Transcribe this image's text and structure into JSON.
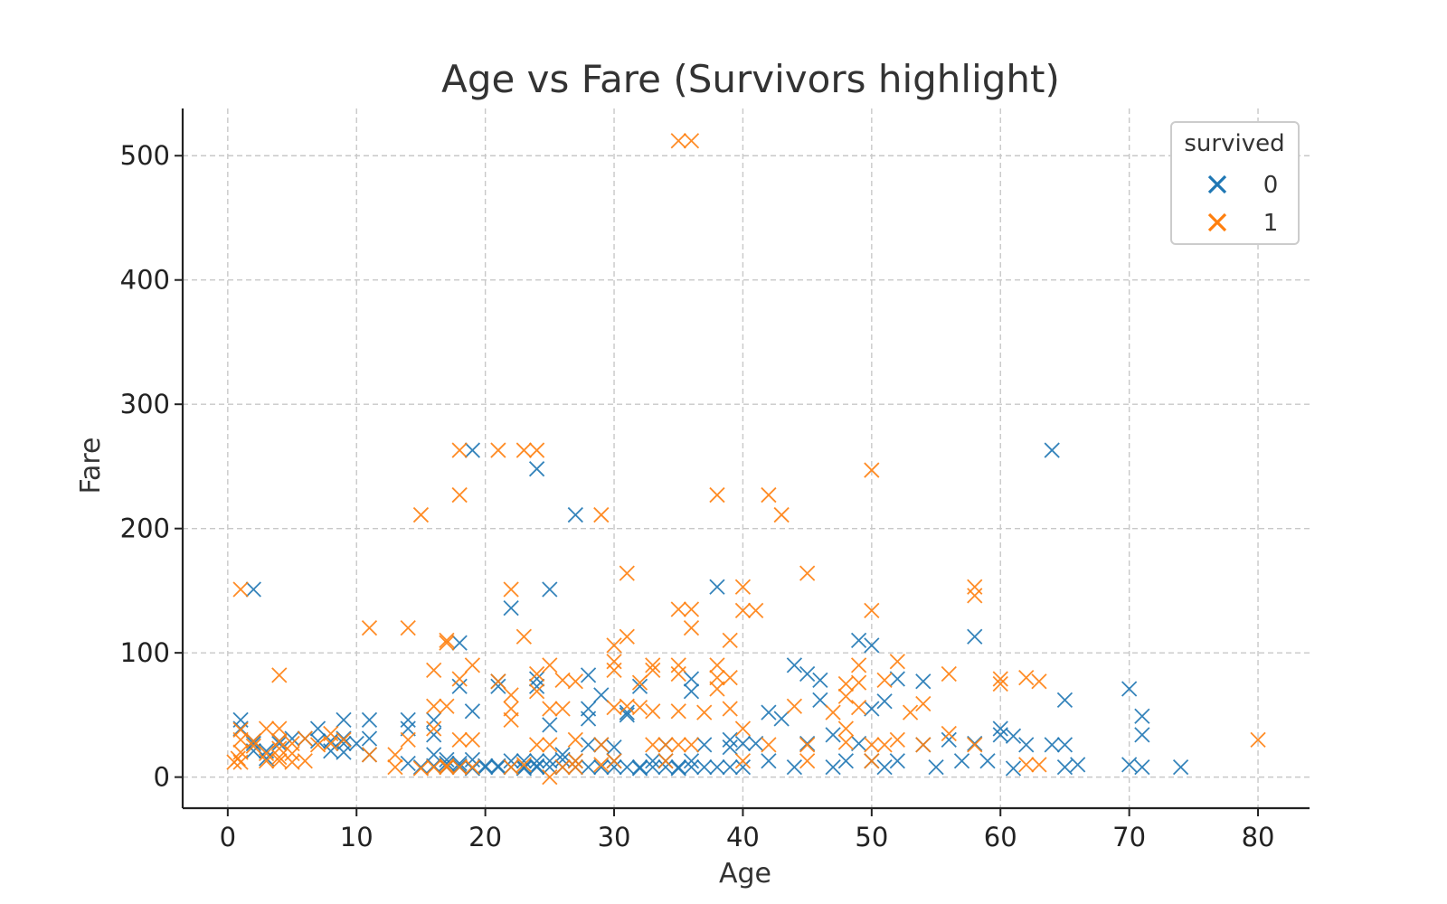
{
  "chart_data": {
    "type": "scatter",
    "title": "Age vs Fare (Survivors highlight)",
    "xlabel": "Age",
    "ylabel": "Fare",
    "xlim": [
      -3.5,
      84
    ],
    "ylim": [
      -25,
      538
    ],
    "xticks": [
      0,
      10,
      20,
      30,
      40,
      50,
      60,
      70,
      80
    ],
    "yticks": [
      0,
      100,
      200,
      300,
      400,
      500
    ],
    "grid": true,
    "marker": "x",
    "legend": {
      "title": "survived",
      "placement": "top-right"
    },
    "series": [
      {
        "name": "0",
        "color": "#1f77b4",
        "points": [
          [
            1,
            46
          ],
          [
            1,
            39
          ],
          [
            2,
            29
          ],
          [
            2,
            27
          ],
          [
            2,
            21
          ],
          [
            2,
            151
          ],
          [
            3,
            21
          ],
          [
            3,
            15
          ],
          [
            4,
            29
          ],
          [
            4,
            27
          ],
          [
            5,
            31
          ],
          [
            6,
            31
          ],
          [
            7,
            39
          ],
          [
            7,
            29
          ],
          [
            8,
            21
          ],
          [
            8,
            29
          ],
          [
            9,
            46
          ],
          [
            9,
            31
          ],
          [
            9,
            27
          ],
          [
            9,
            20
          ],
          [
            10,
            27
          ],
          [
            11,
            46
          ],
          [
            11,
            31
          ],
          [
            11,
            18
          ],
          [
            14,
            46
          ],
          [
            14,
            39
          ],
          [
            14,
            11
          ],
          [
            15,
            8
          ],
          [
            16,
            46
          ],
          [
            16,
            34
          ],
          [
            16,
            18
          ],
          [
            16,
            9
          ],
          [
            17,
            8
          ],
          [
            17,
            11
          ],
          [
            17,
            14
          ],
          [
            18,
            108
          ],
          [
            18,
            73
          ],
          [
            18,
            9
          ],
          [
            18,
            11
          ],
          [
            18,
            8
          ],
          [
            19,
            263
          ],
          [
            19,
            53
          ],
          [
            19,
            7
          ],
          [
            19,
            14
          ],
          [
            20,
            8
          ],
          [
            20,
            9
          ],
          [
            21,
            73
          ],
          [
            21,
            77
          ],
          [
            21,
            9
          ],
          [
            21,
            8
          ],
          [
            22,
            136
          ],
          [
            22,
            8
          ],
          [
            22,
            13
          ],
          [
            23,
            7
          ],
          [
            23,
            13
          ],
          [
            23,
            8
          ],
          [
            24,
            248
          ],
          [
            24,
            79
          ],
          [
            24,
            73
          ],
          [
            24,
            9
          ],
          [
            24,
            13
          ],
          [
            24,
            8
          ],
          [
            25,
            151
          ],
          [
            25,
            42
          ],
          [
            25,
            13
          ],
          [
            25,
            8
          ],
          [
            26,
            8
          ],
          [
            26,
            14
          ],
          [
            26,
            18
          ],
          [
            27,
            211
          ],
          [
            27,
            8
          ],
          [
            27,
            13
          ],
          [
            28,
            82
          ],
          [
            28,
            55
          ],
          [
            28,
            47
          ],
          [
            28,
            8
          ],
          [
            28,
            26
          ],
          [
            29,
            66
          ],
          [
            29,
            8
          ],
          [
            29,
            26
          ],
          [
            30,
            8
          ],
          [
            30,
            24
          ],
          [
            30,
            13
          ],
          [
            31,
            52
          ],
          [
            31,
            50
          ],
          [
            31,
            8
          ],
          [
            32,
            73
          ],
          [
            32,
            8
          ],
          [
            32,
            7
          ],
          [
            33,
            8
          ],
          [
            33,
            13
          ],
          [
            34,
            8
          ],
          [
            34,
            13
          ],
          [
            34,
            26
          ],
          [
            35,
            8
          ],
          [
            35,
            7
          ],
          [
            36,
            79
          ],
          [
            36,
            69
          ],
          [
            36,
            8
          ],
          [
            36,
            13
          ],
          [
            37,
            26
          ],
          [
            37,
            8
          ],
          [
            38,
            153
          ],
          [
            38,
            8
          ],
          [
            39,
            30
          ],
          [
            39,
            24
          ],
          [
            39,
            8
          ],
          [
            40,
            8
          ],
          [
            40,
            27
          ],
          [
            41,
            27
          ],
          [
            42,
            52
          ],
          [
            42,
            13
          ],
          [
            43,
            47
          ],
          [
            44,
            90
          ],
          [
            44,
            8
          ],
          [
            45,
            83
          ],
          [
            45,
            27
          ],
          [
            46,
            62
          ],
          [
            46,
            78
          ],
          [
            47,
            8
          ],
          [
            47,
            34
          ],
          [
            48,
            13
          ],
          [
            49,
            110
          ],
          [
            49,
            27
          ],
          [
            50,
            106
          ],
          [
            50,
            55
          ],
          [
            50,
            13
          ],
          [
            51,
            61
          ],
          [
            51,
            8
          ],
          [
            52,
            79
          ],
          [
            52,
            13
          ],
          [
            54,
            26
          ],
          [
            54,
            77
          ],
          [
            55,
            8
          ],
          [
            56,
            30
          ],
          [
            57,
            13
          ],
          [
            58,
            113
          ],
          [
            58,
            27
          ],
          [
            59,
            13
          ],
          [
            60,
            39
          ],
          [
            60,
            34
          ],
          [
            61,
            33
          ],
          [
            61,
            7
          ],
          [
            62,
            26
          ],
          [
            64,
            263
          ],
          [
            64,
            26
          ],
          [
            65,
            26
          ],
          [
            65,
            62
          ],
          [
            65,
            8
          ],
          [
            66,
            10
          ],
          [
            70,
            71
          ],
          [
            70,
            10
          ],
          [
            71,
            49
          ],
          [
            71,
            34
          ],
          [
            71,
            8
          ],
          [
            74,
            8
          ]
        ]
      },
      {
        "name": "1",
        "color": "#ff7f0e",
        "points": [
          [
            0.5,
            12
          ],
          [
            0.8,
            15
          ],
          [
            1,
            151
          ],
          [
            1,
            38
          ],
          [
            1,
            30
          ],
          [
            1,
            20
          ],
          [
            1,
            12
          ],
          [
            2,
            29
          ],
          [
            2,
            25
          ],
          [
            3,
            39
          ],
          [
            3,
            19
          ],
          [
            3,
            13
          ],
          [
            4,
            82
          ],
          [
            4,
            39
          ],
          [
            4,
            29
          ],
          [
            4,
            23
          ],
          [
            4,
            16
          ],
          [
            4,
            13
          ],
          [
            5,
            27
          ],
          [
            5,
            19
          ],
          [
            5,
            12
          ],
          [
            6,
            31
          ],
          [
            6,
            13
          ],
          [
            7,
            26
          ],
          [
            8,
            35
          ],
          [
            8,
            27
          ],
          [
            9,
            30
          ],
          [
            11,
            120
          ],
          [
            11,
            18
          ],
          [
            13,
            18
          ],
          [
            13,
            8
          ],
          [
            14,
            120
          ],
          [
            14,
            30
          ],
          [
            15,
            211
          ],
          [
            15,
            7
          ],
          [
            16,
            86
          ],
          [
            16,
            57
          ],
          [
            16,
            39
          ],
          [
            16,
            8
          ],
          [
            17,
            110
          ],
          [
            17,
            108
          ],
          [
            17,
            57
          ],
          [
            17,
            9
          ],
          [
            17,
            8
          ],
          [
            18,
            263
          ],
          [
            18,
            227
          ],
          [
            18,
            79
          ],
          [
            18,
            30
          ],
          [
            18,
            8
          ],
          [
            19,
            90
          ],
          [
            19,
            30
          ],
          [
            19,
            8
          ],
          [
            21,
            263
          ],
          [
            21,
            77
          ],
          [
            22,
            151
          ],
          [
            22,
            66
          ],
          [
            22,
            55
          ],
          [
            22,
            46
          ],
          [
            22,
            8
          ],
          [
            23,
            263
          ],
          [
            23,
            113
          ],
          [
            23,
            10
          ],
          [
            24,
            263
          ],
          [
            24,
            83
          ],
          [
            24,
            69
          ],
          [
            24,
            26
          ],
          [
            25,
            90
          ],
          [
            25,
            55
          ],
          [
            25,
            26
          ],
          [
            25,
            0
          ],
          [
            26,
            78
          ],
          [
            26,
            55
          ],
          [
            26,
            8
          ],
          [
            27,
            77
          ],
          [
            27,
            30
          ],
          [
            27,
            13
          ],
          [
            27,
            8
          ],
          [
            29,
            211
          ],
          [
            29,
            26
          ],
          [
            29,
            10
          ],
          [
            30,
            106
          ],
          [
            30,
            93
          ],
          [
            30,
            86
          ],
          [
            30,
            56
          ],
          [
            30,
            13
          ],
          [
            31,
            164
          ],
          [
            31,
            113
          ],
          [
            31,
            57
          ],
          [
            32,
            76
          ],
          [
            32,
            56
          ],
          [
            33,
            90
          ],
          [
            33,
            86
          ],
          [
            33,
            53
          ],
          [
            33,
            26
          ],
          [
            34,
            26
          ],
          [
            34,
            13
          ],
          [
            35,
            512
          ],
          [
            35,
            135
          ],
          [
            35,
            90
          ],
          [
            35,
            83
          ],
          [
            35,
            53
          ],
          [
            35,
            26
          ],
          [
            36,
            512
          ],
          [
            36,
            135
          ],
          [
            36,
            120
          ],
          [
            36,
            26
          ],
          [
            37,
            52
          ],
          [
            38,
            227
          ],
          [
            38,
            90
          ],
          [
            38,
            80
          ],
          [
            38,
            71
          ],
          [
            39,
            110
          ],
          [
            39,
            80
          ],
          [
            39,
            55
          ],
          [
            40,
            153
          ],
          [
            40,
            134
          ],
          [
            40,
            39
          ],
          [
            40,
            13
          ],
          [
            41,
            134
          ],
          [
            42,
            227
          ],
          [
            42,
            26
          ],
          [
            43,
            211
          ],
          [
            44,
            57
          ],
          [
            45,
            164
          ],
          [
            45,
            26
          ],
          [
            45,
            13
          ],
          [
            47,
            52
          ],
          [
            48,
            75
          ],
          [
            48,
            65
          ],
          [
            48,
            39
          ],
          [
            48,
            28
          ],
          [
            49,
            90
          ],
          [
            49,
            76
          ],
          [
            49,
            56
          ],
          [
            50,
            247
          ],
          [
            50,
            134
          ],
          [
            50,
            26
          ],
          [
            50,
            13
          ],
          [
            51,
            78
          ],
          [
            51,
            26
          ],
          [
            52,
            93
          ],
          [
            52,
            30
          ],
          [
            53,
            52
          ],
          [
            54,
            59
          ],
          [
            54,
            26
          ],
          [
            56,
            83
          ],
          [
            56,
            35
          ],
          [
            58,
            153
          ],
          [
            58,
            146
          ],
          [
            58,
            26
          ],
          [
            60,
            79
          ],
          [
            60,
            75
          ],
          [
            62,
            80
          ],
          [
            62,
            10
          ],
          [
            63,
            77
          ],
          [
            63,
            10
          ],
          [
            80,
            30
          ]
        ]
      }
    ]
  }
}
